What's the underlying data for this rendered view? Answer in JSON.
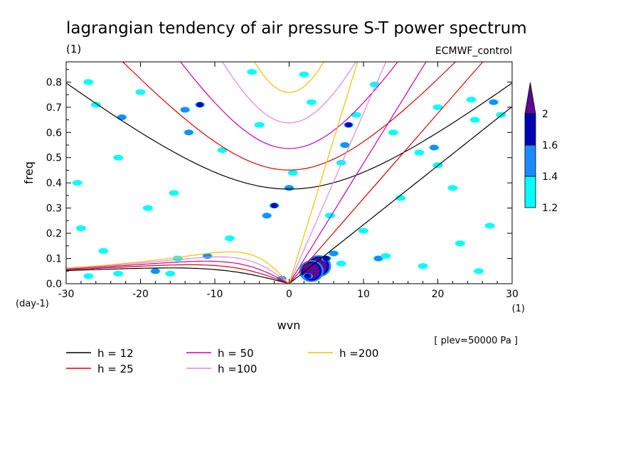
{
  "chart_data": {
    "type": "heatmap",
    "title": "lagrangian tendency of air pressure S-T power spectrum",
    "subtitle_left": "(1)",
    "subtitle_right": "ECMWF_control",
    "xlabel": "wvn",
    "ylabel": "freq",
    "x_unit": "(1)",
    "y_unit": "(day-1)",
    "note": "[ plev=50000 Pa ]",
    "xlim": [
      -30,
      30
    ],
    "ylim": [
      0,
      0.88
    ],
    "x_ticks": [
      -30,
      -20,
      -10,
      0,
      10,
      20,
      30
    ],
    "x_tick_labels": [
      "-30",
      "-20",
      "-10",
      "0",
      "10",
      "20",
      "30"
    ],
    "y_ticks": [
      0,
      0.1,
      0.2,
      0.3,
      0.4,
      0.5,
      0.6,
      0.7,
      0.8
    ],
    "y_tick_labels": [
      "0.0",
      "0.1",
      "0.2",
      "0.3",
      "0.4",
      "0.5",
      "0.6",
      "0.7",
      "0.8"
    ],
    "colorbar": {
      "levels": [
        1.2,
        1.4,
        1.6,
        2
      ],
      "level_labels": [
        "1.2",
        "1.4",
        "1.6",
        "2"
      ],
      "colors": [
        "#00ffff",
        "#1a8cff",
        "#0000b4",
        "#5a0a96"
      ]
    },
    "dispersion_curves": [
      {
        "h": 12,
        "label": "h = 12",
        "color": "#000000"
      },
      {
        "h": 25,
        "label": "h = 25",
        "color": "#e00000"
      },
      {
        "h": 50,
        "label": "h = 50",
        "color": "#cc00aa"
      },
      {
        "h": 100,
        "label": "h =100",
        "color": "#dd88dd"
      },
      {
        "h": 200,
        "label": "h =200",
        "color": "#f0c000"
      }
    ],
    "legend_placement": "bottom-left",
    "spectral_blobs": [
      {
        "x": 4.0,
        "y": 0.07,
        "level": 3
      },
      {
        "x": 3.0,
        "y": 0.05,
        "level": 3
      },
      {
        "x": 5.0,
        "y": 0.1,
        "level": 2
      },
      {
        "x": 2.5,
        "y": 0.03,
        "level": 2
      },
      {
        "x": 6.0,
        "y": 0.12,
        "level": 1
      },
      {
        "x": 7.0,
        "y": 0.08,
        "level": 0
      },
      {
        "x": 8.0,
        "y": 0.63,
        "level": 2
      },
      {
        "x": 7.5,
        "y": 0.55,
        "level": 1
      },
      {
        "x": 9.0,
        "y": 0.67,
        "level": 0
      },
      {
        "x": 7.0,
        "y": 0.48,
        "level": 0
      },
      {
        "x": -2.0,
        "y": 0.31,
        "level": 2
      },
      {
        "x": -3.0,
        "y": 0.27,
        "level": 1
      },
      {
        "x": -12.0,
        "y": 0.71,
        "level": 2
      },
      {
        "x": -14.0,
        "y": 0.69,
        "level": 1
      },
      {
        "x": -13.5,
        "y": 0.6,
        "level": 1
      },
      {
        "x": -22.5,
        "y": 0.66,
        "level": 1
      },
      {
        "x": -23.0,
        "y": 0.5,
        "level": 0
      },
      {
        "x": -26.0,
        "y": 0.71,
        "level": 0
      },
      {
        "x": -11.0,
        "y": 0.11,
        "level": 1
      },
      {
        "x": -15.0,
        "y": 0.1,
        "level": 0
      },
      {
        "x": -18.0,
        "y": 0.05,
        "level": 1
      },
      {
        "x": -16.0,
        "y": 0.04,
        "level": 0
      },
      {
        "x": -23.0,
        "y": 0.04,
        "level": 0
      },
      {
        "x": -27.0,
        "y": 0.03,
        "level": 0
      },
      {
        "x": 0.0,
        "y": 0.38,
        "level": 1
      },
      {
        "x": 0.5,
        "y": 0.44,
        "level": 0
      },
      {
        "x": 10.0,
        "y": 0.21,
        "level": 0
      },
      {
        "x": 12.0,
        "y": 0.1,
        "level": 1
      },
      {
        "x": 13.0,
        "y": 0.11,
        "level": 0
      },
      {
        "x": 17.5,
        "y": 0.52,
        "level": 0
      },
      {
        "x": 19.5,
        "y": 0.54,
        "level": 1
      },
      {
        "x": 20.0,
        "y": 0.47,
        "level": 0
      },
      {
        "x": 20.0,
        "y": 0.7,
        "level": 0
      },
      {
        "x": 24.5,
        "y": 0.73,
        "level": 0
      },
      {
        "x": 27.5,
        "y": 0.72,
        "level": 1
      },
      {
        "x": 28.5,
        "y": 0.67,
        "level": 0
      },
      {
        "x": 25.0,
        "y": 0.65,
        "level": 0
      },
      {
        "x": 22.0,
        "y": 0.38,
        "level": 0
      },
      {
        "x": 27.0,
        "y": 0.23,
        "level": 0
      },
      {
        "x": 15.0,
        "y": 0.34,
        "level": 0
      },
      {
        "x": 2.0,
        "y": 0.83,
        "level": 0
      },
      {
        "x": -5.0,
        "y": 0.84,
        "level": 0
      },
      {
        "x": -20.0,
        "y": 0.76,
        "level": 0
      },
      {
        "x": -27.0,
        "y": 0.8,
        "level": 0
      },
      {
        "x": -28.0,
        "y": 0.22,
        "level": 0
      },
      {
        "x": -25.0,
        "y": 0.13,
        "level": 0
      },
      {
        "x": -8.0,
        "y": 0.18,
        "level": 0
      },
      {
        "x": -19.0,
        "y": 0.3,
        "level": 0
      },
      {
        "x": -9.0,
        "y": 0.53,
        "level": 0
      },
      {
        "x": 11.5,
        "y": 0.79,
        "level": 0
      },
      {
        "x": 3.0,
        "y": 0.72,
        "level": 0
      },
      {
        "x": 14.0,
        "y": 0.6,
        "level": 0
      },
      {
        "x": -4.0,
        "y": 0.63,
        "level": 0
      },
      {
        "x": 23.0,
        "y": 0.16,
        "level": 0
      },
      {
        "x": -28.5,
        "y": 0.4,
        "level": 0
      },
      {
        "x": 18.0,
        "y": 0.07,
        "level": 0
      },
      {
        "x": 25.5,
        "y": 0.05,
        "level": 0
      },
      {
        "x": -1.0,
        "y": 0.02,
        "level": 1
      },
      {
        "x": -15.5,
        "y": 0.36,
        "level": 0
      },
      {
        "x": 5.5,
        "y": 0.27,
        "level": 0
      }
    ]
  }
}
